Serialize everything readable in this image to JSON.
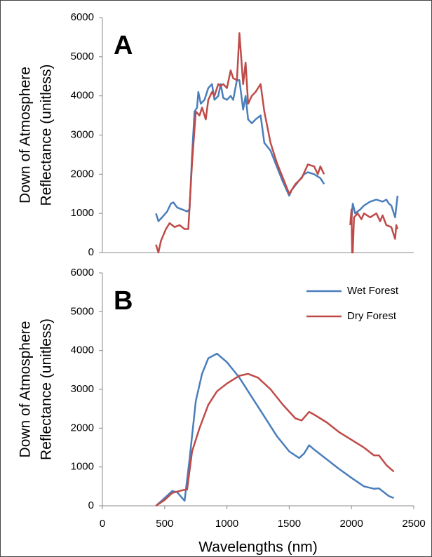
{
  "chart_data": [
    {
      "type": "line",
      "annotation": "A",
      "ylabel": [
        "Down of Atmosphere",
        "Reflectance (unitless)"
      ],
      "xlim": [
        0,
        2500
      ],
      "ylim": [
        0,
        6000
      ],
      "yticks": [
        0,
        1000,
        2000,
        3000,
        4000,
        5000,
        6000
      ],
      "series": [
        {
          "color": "#4a7ebb",
          "x": [
            430,
            450,
            480,
            520,
            550,
            570,
            600,
            640,
            680,
            700,
            720,
            740,
            760,
            770,
            790,
            820,
            850,
            880,
            900,
            930,
            950,
            970,
            1000,
            1030,
            1050,
            1080,
            1100,
            1130,
            1150,
            1170,
            1200,
            1230,
            1270,
            1300,
            1350,
            1400,
            1450,
            1500,
            1520,
            1570,
            1620,
            1650,
            1700,
            1750,
            1780,
            1850,
            1990,
            2000,
            2010,
            2030,
            2070,
            2100,
            2150,
            2200,
            2250,
            2280,
            2300,
            2320,
            2350,
            2370
          ],
          "values": [
            1000,
            800,
            900,
            1050,
            1250,
            1280,
            1150,
            1100,
            1050,
            1100,
            2500,
            3600,
            3700,
            4100,
            3800,
            3900,
            4200,
            4300,
            3900,
            4000,
            4300,
            3950,
            3900,
            4000,
            3900,
            4400,
            4400,
            3650,
            4000,
            3400,
            3300,
            3400,
            3500,
            2800,
            2600,
            2200,
            1800,
            1450,
            1600,
            1800,
            2000,
            2050,
            2000,
            1900,
            1750,
            null,
            900,
            850,
            1250,
            1000,
            1100,
            1200,
            1300,
            1350,
            1300,
            1350,
            1250,
            1200,
            900,
            1450
          ]
        },
        {
          "color": "#be4b48",
          "x": [
            430,
            450,
            470,
            510,
            540,
            580,
            620,
            660,
            690,
            720,
            750,
            780,
            800,
            830,
            850,
            880,
            900,
            930,
            950,
            970,
            1000,
            1030,
            1050,
            1080,
            1100,
            1130,
            1150,
            1170,
            1200,
            1230,
            1270,
            1300,
            1350,
            1400,
            1450,
            1500,
            1550,
            1600,
            1650,
            1700,
            1730,
            1750,
            1780,
            1850,
            1990,
            2000,
            2005,
            2010,
            2020,
            2050,
            2080,
            2100,
            2150,
            2200,
            2230,
            2250,
            2280,
            2320,
            2350,
            2360,
            2370
          ],
          "values": [
            200,
            0,
            300,
            600,
            750,
            650,
            700,
            600,
            600,
            2300,
            3600,
            3500,
            3700,
            3400,
            3900,
            4100,
            4000,
            4300,
            4250,
            4300,
            4200,
            4650,
            4450,
            4400,
            5600,
            4300,
            4850,
            3800,
            4000,
            4100,
            4300,
            3600,
            2800,
            2300,
            1900,
            1500,
            1750,
            1900,
            2250,
            2200,
            2000,
            2200,
            2000,
            null,
            700,
            1100,
            0,
            0,
            900,
            1000,
            850,
            1000,
            900,
            1000,
            800,
            950,
            700,
            650,
            350,
            700,
            600
          ]
        }
      ]
    },
    {
      "type": "line",
      "annotation": "B",
      "ylabel": [
        "Down of Atmosphere",
        "Reflectance (unitless)"
      ],
      "xlabel": "Wavelengths (nm)",
      "xlim": [
        0,
        2500
      ],
      "xticks": [
        0,
        500,
        1000,
        1500,
        2000,
        2500
      ],
      "ylim": [
        0,
        6000
      ],
      "yticks": [
        0,
        1000,
        2000,
        3000,
        4000,
        5000,
        6000
      ],
      "legend": "upper right",
      "series": [
        {
          "name": "Wet Forest",
          "color": "#4a7ebb",
          "x": [
            430,
            500,
            560,
            600,
            640,
            660,
            700,
            750,
            800,
            850,
            920,
            1000,
            1100,
            1200,
            1300,
            1400,
            1500,
            1580,
            1620,
            1660,
            1700,
            1800,
            1900,
            2000,
            2100,
            2180,
            2220,
            2300,
            2340
          ],
          "values": [
            0,
            200,
            380,
            350,
            200,
            130,
            1200,
            2700,
            3400,
            3800,
            3920,
            3700,
            3300,
            2800,
            2300,
            1800,
            1400,
            1230,
            1350,
            1560,
            1450,
            1200,
            950,
            720,
            500,
            440,
            450,
            250,
            200
          ]
        },
        {
          "name": "Dry Forest",
          "color": "#be4b48",
          "x": [
            430,
            500,
            560,
            640,
            680,
            720,
            780,
            850,
            920,
            1000,
            1100,
            1170,
            1250,
            1350,
            1450,
            1550,
            1600,
            1660,
            1700,
            1800,
            1900,
            2000,
            2100,
            2180,
            2220,
            2280,
            2340
          ],
          "values": [
            0,
            150,
            330,
            400,
            420,
            1400,
            2000,
            2600,
            2950,
            3150,
            3350,
            3400,
            3300,
            3000,
            2600,
            2250,
            2200,
            2420,
            2350,
            2150,
            1900,
            1700,
            1500,
            1300,
            1300,
            1050,
            880
          ]
        }
      ]
    }
  ]
}
